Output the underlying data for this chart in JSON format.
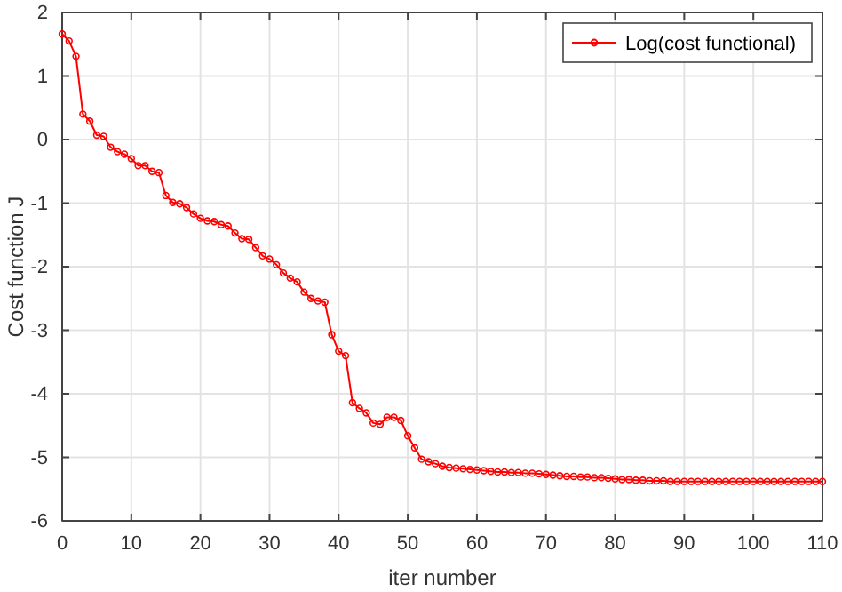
{
  "chart_data": {
    "type": "line",
    "xlabel": "iter number",
    "ylabel": "Cost function J",
    "x": [
      0,
      1,
      2,
      3,
      4,
      5,
      6,
      7,
      8,
      9,
      10,
      11,
      12,
      13,
      14,
      15,
      16,
      17,
      18,
      19,
      20,
      21,
      22,
      23,
      24,
      25,
      26,
      27,
      28,
      29,
      30,
      31,
      32,
      33,
      34,
      35,
      36,
      37,
      38,
      39,
      40,
      41,
      42,
      43,
      44,
      45,
      46,
      47,
      48,
      49,
      50,
      51,
      52,
      53,
      54,
      55,
      56,
      57,
      58,
      59,
      60,
      61,
      62,
      63,
      64,
      65,
      66,
      67,
      68,
      69,
      70,
      71,
      72,
      73,
      74,
      75,
      76,
      77,
      78,
      79,
      80,
      81,
      82,
      83,
      84,
      85,
      86,
      87,
      88,
      89,
      90,
      91,
      92,
      93,
      94,
      95,
      96,
      97,
      98,
      99,
      100,
      101,
      102,
      103,
      104,
      105,
      106,
      107,
      108,
      109,
      110
    ],
    "series": [
      {
        "name": "Log(cost functional)",
        "color": "#ff0000",
        "values": [
          1.66,
          1.55,
          1.31,
          0.4,
          0.29,
          0.07,
          0.05,
          -0.12,
          -0.19,
          -0.23,
          -0.3,
          -0.41,
          -0.41,
          -0.5,
          -0.52,
          -0.88,
          -0.99,
          -1.01,
          -1.07,
          -1.17,
          -1.24,
          -1.28,
          -1.29,
          -1.34,
          -1.36,
          -1.47,
          -1.56,
          -1.57,
          -1.7,
          -1.83,
          -1.88,
          -1.97,
          -2.1,
          -2.18,
          -2.24,
          -2.4,
          -2.5,
          -2.54,
          -2.56,
          -3.07,
          -3.33,
          -3.4,
          -4.14,
          -4.23,
          -4.3,
          -4.46,
          -4.48,
          -4.37,
          -4.37,
          -4.42,
          -4.66,
          -4.85,
          -5.03,
          -5.07,
          -5.1,
          -5.14,
          -5.16,
          -5.17,
          -5.18,
          -5.19,
          -5.2,
          -5.21,
          -5.22,
          -5.23,
          -5.23,
          -5.24,
          -5.24,
          -5.25,
          -5.25,
          -5.26,
          -5.27,
          -5.28,
          -5.29,
          -5.3,
          -5.3,
          -5.31,
          -5.31,
          -5.32,
          -5.32,
          -5.33,
          -5.34,
          -5.35,
          -5.35,
          -5.36,
          -5.36,
          -5.37,
          -5.37,
          -5.37,
          -5.38,
          -5.38,
          -5.38,
          -5.38,
          -5.38,
          -5.38,
          -5.38,
          -5.38,
          -5.38,
          -5.38,
          -5.38,
          -5.38,
          -5.38,
          -5.38,
          -5.38,
          -5.38,
          -5.38,
          -5.38,
          -5.38,
          -5.38,
          -5.38,
          -5.38,
          -5.38
        ]
      }
    ],
    "xlim": [
      0,
      110
    ],
    "xticks": [
      0,
      10,
      20,
      30,
      40,
      50,
      60,
      70,
      80,
      90,
      100,
      110
    ],
    "ylim": [
      -6,
      2
    ],
    "yticks": [
      -6,
      -5,
      -4,
      -3,
      -2,
      -1,
      0,
      1,
      2
    ],
    "grid": true,
    "legend": "top right",
    "marker": "circle",
    "line_style": "solid"
  }
}
